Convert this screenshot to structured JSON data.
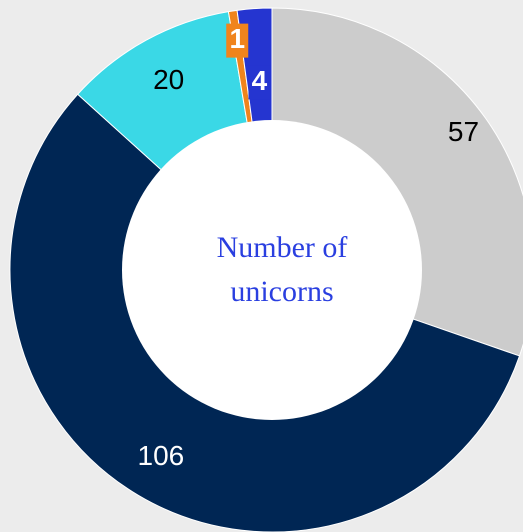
{
  "chart_data": {
    "type": "pie",
    "donut": true,
    "title": "Number of unicorns",
    "categories": [
      null,
      null,
      null,
      null,
      null
    ],
    "values": [
      57,
      106,
      20,
      1,
      4
    ],
    "colors": [
      "#cccccc",
      "#002654",
      "#3ad8e6",
      "#f0841c",
      "#2535d0"
    ]
  }
}
